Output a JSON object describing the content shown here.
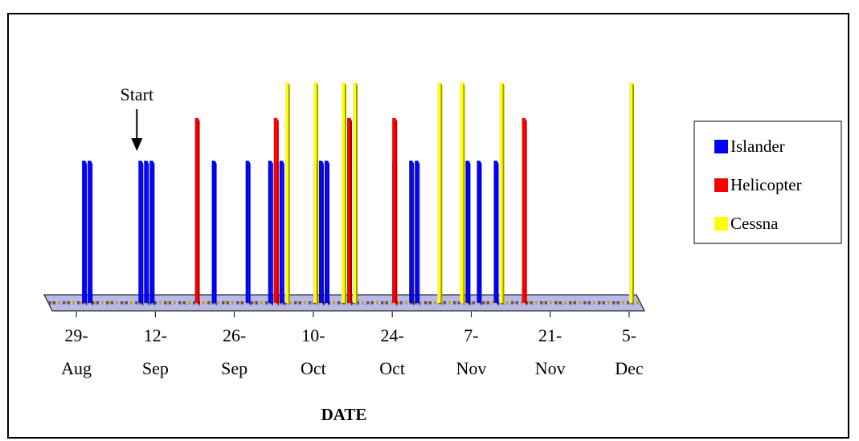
{
  "chart_data": {
    "type": "bar",
    "title": "",
    "xlabel": "DATE",
    "ylabel": "",
    "x_range": [
      "2003-08-24",
      "2003-12-07"
    ],
    "x_ticks": [
      {
        "date": "2003-08-29",
        "line1": "29-",
        "line2": "Aug"
      },
      {
        "date": "2003-09-12",
        "line1": "12-",
        "line2": "Sep"
      },
      {
        "date": "2003-09-26",
        "line1": "26-",
        "line2": "Sep"
      },
      {
        "date": "2003-10-10",
        "line1": "10-",
        "line2": "Oct"
      },
      {
        "date": "2003-10-24",
        "line1": "24-",
        "line2": "Oct"
      },
      {
        "date": "2003-11-07",
        "line1": "7-",
        "line2": "Nov"
      },
      {
        "date": "2003-11-21",
        "line1": "21-",
        "line2": "Nov"
      },
      {
        "date": "2003-12-05",
        "line1": "5-",
        "line2": "Dec"
      }
    ],
    "grid": false,
    "legend_position": "right",
    "annotations": [
      {
        "text": "Start",
        "date": "2003-09-09"
      }
    ],
    "series": [
      {
        "name": "Islander",
        "color": "#0000ff",
        "value": 1,
        "dates": [
          "2003-08-30",
          "2003-08-31",
          "2003-09-09",
          "2003-09-10",
          "2003-09-11",
          "2003-09-19",
          "2003-09-22",
          "2003-09-28",
          "2003-10-02",
          "2003-10-03",
          "2003-10-04",
          "2003-10-10",
          "2003-10-11",
          "2003-10-12",
          "2003-10-17",
          "2003-10-24",
          "2003-10-27",
          "2003-10-28",
          "2003-11-06",
          "2003-11-08",
          "2003-11-11"
        ]
      },
      {
        "name": "Helicopter",
        "color": "#ff0000",
        "value": 1.3,
        "dates": [
          "2003-09-19",
          "2003-10-03",
          "2003-10-16",
          "2003-10-24",
          "2003-11-16"
        ]
      },
      {
        "name": "Cessna",
        "color": "#ffff00",
        "value": 1.55,
        "dates": [
          "2003-10-05",
          "2003-10-10",
          "2003-10-15",
          "2003-10-17",
          "2003-11-01",
          "2003-11-05",
          "2003-11-12",
          "2003-12-05"
        ]
      }
    ]
  }
}
